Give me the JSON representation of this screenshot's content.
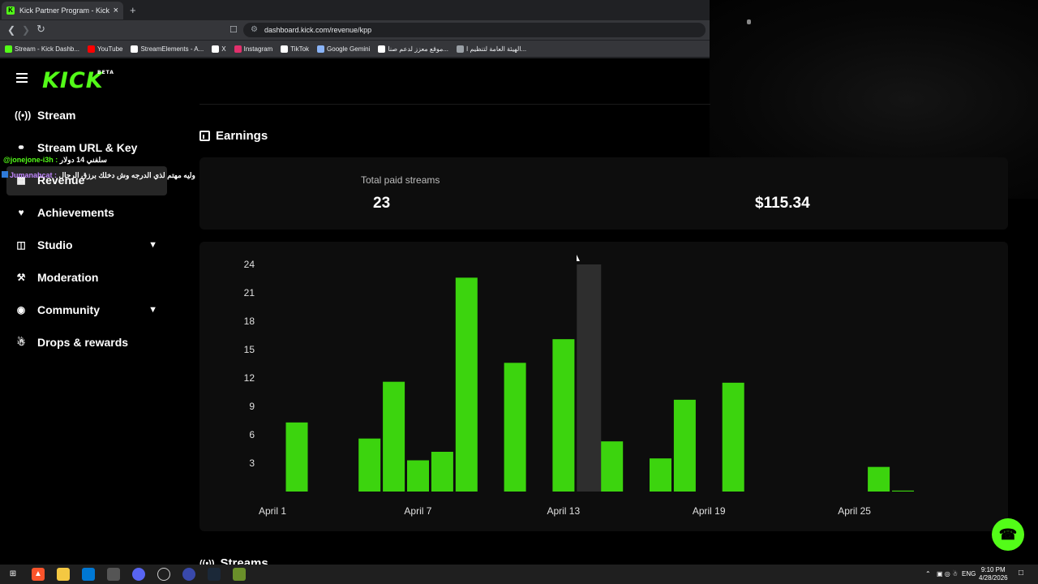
{
  "browser": {
    "tab_title": "Kick Partner Program - Kick Dash",
    "tab_close": "×",
    "new_tab": "+",
    "url": "dashboard.kick.com/revenue/kpp",
    "bookmarks": [
      {
        "label": "Stream - Kick Dashb...",
        "icon_color": "#53fc18"
      },
      {
        "label": "YouTube",
        "icon_color": "#ff0000"
      },
      {
        "label": "StreamElements - A...",
        "icon_color": "#ffffff"
      },
      {
        "label": "X",
        "icon_color": "#ffffff"
      },
      {
        "label": "Instagram",
        "icon_color": "#e1306c"
      },
      {
        "label": "TikTok",
        "icon_color": "#ffffff"
      },
      {
        "label": "Google Gemini",
        "icon_color": "#8ab4f8"
      },
      {
        "label": "موقع معزز لدعم صنا...",
        "icon_color": "#ffffff"
      },
      {
        "label": "الهيئة العامة لتنظيم ا...",
        "icon_color": "#9aa0a6"
      }
    ]
  },
  "logo": {
    "text": "KICK",
    "badge": "BETA"
  },
  "sidebar": {
    "items": [
      {
        "label": "Stream",
        "icon": "broadcast-icon"
      },
      {
        "label": "Stream URL & Key",
        "icon": "key-icon"
      },
      {
        "label": "Revenue",
        "icon": "bank-icon"
      },
      {
        "label": "Achievements",
        "icon": "trophy-icon"
      },
      {
        "label": "Studio",
        "icon": "grid-icon"
      },
      {
        "label": "Moderation",
        "icon": "wrench-icon"
      },
      {
        "label": "Community",
        "icon": "people-icon"
      },
      {
        "label": "Drops & rewards",
        "icon": "gift-icon"
      }
    ]
  },
  "chat": [
    {
      "user": "@jonejone-i3h :",
      "message": "سلفني 14 دولار"
    },
    {
      "user": "Jumanahcat :",
      "message": "وليه مهتم لذي الدرجه وش دخلك برزق الرجال"
    }
  ],
  "earnings": {
    "title": "Earnings",
    "total_paid_label": "Total paid streams",
    "total_paid_value": "23",
    "amount_value": "$115.34"
  },
  "chart_data": {
    "type": "bar",
    "y_ticks": [
      3,
      6,
      9,
      12,
      15,
      18,
      21,
      24
    ],
    "x_tick_labels": [
      "April 1",
      "April 7",
      "April 13",
      "April 19",
      "April 25"
    ],
    "ylim": [
      0,
      24
    ],
    "bar_color": "#3cd40e",
    "hover_color": "#2e2e2e",
    "x": [
      "April 1",
      "April 2",
      "April 3",
      "April 4",
      "April 5",
      "April 6",
      "April 7",
      "April 8",
      "April 9",
      "April 10",
      "April 11",
      "April 12",
      "April 13",
      "April 14",
      "April 15",
      "April 16",
      "April 17",
      "April 18",
      "April 19",
      "April 20",
      "April 21",
      "April 22",
      "April 23",
      "April 24",
      "April 25",
      "April 26"
    ],
    "values": [
      7.3,
      0,
      0,
      5.6,
      11.6,
      3.3,
      4.2,
      22.6,
      0,
      13.6,
      0,
      16.1,
      0,
      5.3,
      0,
      3.5,
      9.7,
      0,
      11.5,
      0,
      0,
      0,
      0,
      0,
      2.6,
      0.1
    ],
    "hover_index": 12,
    "hover_value": 24
  },
  "streams": {
    "title": "Streams"
  },
  "taskbar": {
    "time": "9:10 PM",
    "date": "4/28/2026",
    "lang": "ENG"
  }
}
